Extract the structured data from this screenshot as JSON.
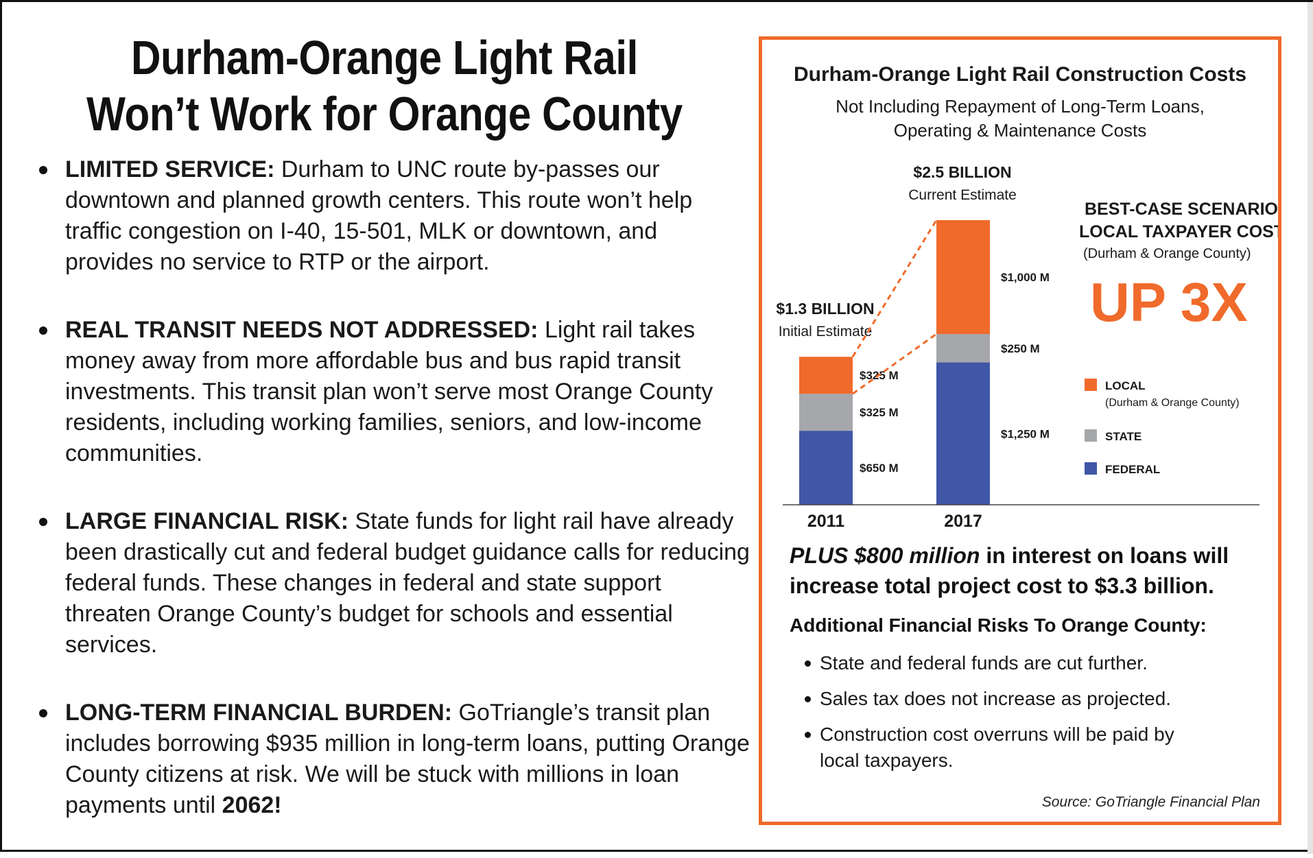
{
  "headline": {
    "line1": "Durham-Orange Light Rail",
    "line2": "Won’t Work for Orange County"
  },
  "bullets": [
    {
      "head": "LIMITED SERVICE:",
      "text": " Durham to UNC route by-passes our downtown and planned growth centers. This route won’t help traffic congestion on I-40, 15-501, MLK or downtown, and provides no service to RTP or the airport."
    },
    {
      "head": "REAL TRANSIT NEEDS NOT ADDRESSED:",
      "text": " Light rail takes money away from more affordable bus and bus rapid transit investments. This transit plan won’t serve most Orange County residents, including working families, seniors, and low-income communities."
    },
    {
      "head": "LARGE FINANCIAL RISK:",
      "text": " State funds for light rail have already been drastically cut and federal budget guidance calls for reducing federal funds. These changes in federal and state support threaten Orange County’s budget for schools and essential services."
    },
    {
      "head": "LONG-TERM FINANCIAL BURDEN:",
      "text": " GoTriangle’s transit plan includes borrowing $935 million in long-term loans, putting Orange County citizens at risk. We will be stuck with millions in loan payments until ",
      "strong_end": "2062!"
    }
  ],
  "panel": {
    "title": "Durham-Orange Light Rail Construction Costs",
    "subtitle_line1": "Not Including Repayment of Long-Term Loans,",
    "subtitle_line2": "Operating & Maintenance Costs",
    "callout_line1": "BEST-CASE SCENARIO",
    "callout_line2": "LOCAL TAXPAYER COST",
    "callout_line3": "(Durham & Orange County)",
    "callout_big": "UP 3X",
    "plus_italic": "PLUS $800 million",
    "plus_rest": " in interest on loans will increase total project cost to $3.3 billion.",
    "risk_heading": "Additional Financial Risks To Orange County:",
    "risks": [
      "State and federal funds are cut further.",
      "Sales tax does not increase as projected.",
      "Construction cost overruns will be paid by local taxpayers."
    ],
    "source": "Source: GoTriangle Financial Plan"
  },
  "colors": {
    "local": "#f06a2b",
    "state": "#a6a7aa",
    "federal": "#3f57a6",
    "border": "#f06a2b"
  },
  "chart_data": {
    "type": "bar",
    "stacked": true,
    "categories": [
      "2011",
      "2017"
    ],
    "series": [
      {
        "name": "FEDERAL",
        "values": [
          650,
          1250
        ],
        "labels": [
          "$650 M",
          "$1,250 M"
        ]
      },
      {
        "name": "STATE",
        "values": [
          325,
          250
        ],
        "labels": [
          "$325 M",
          "$250 M"
        ]
      },
      {
        "name": "LOCAL",
        "values": [
          325,
          1000
        ],
        "labels": [
          "$325 M",
          "$1,000 M"
        ]
      }
    ],
    "totals": [
      {
        "label": "$1.3 BILLION",
        "sub": "Initial Estimate"
      },
      {
        "label": "$2.5 BILLION",
        "sub": "Current Estimate"
      }
    ],
    "legend": [
      {
        "name": "LOCAL",
        "sub": "(Durham & Orange County)"
      },
      {
        "name": "STATE",
        "sub": ""
      },
      {
        "name": "FEDERAL",
        "sub": ""
      }
    ],
    "legend_position": "right",
    "ylim": [
      0,
      2500
    ],
    "grid": false
  }
}
